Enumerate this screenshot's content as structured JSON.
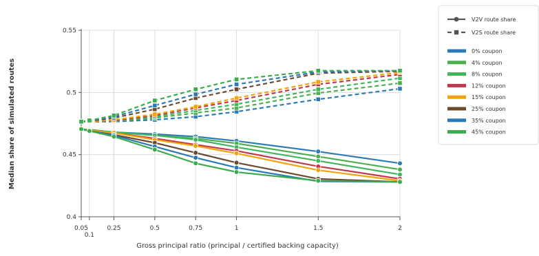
{
  "chart_data": {
    "type": "line",
    "xlabel": "Gross principal ratio (principal / certified backing capacity)",
    "ylabel": "Median share of simulated routes",
    "xlim": [
      0.05,
      2
    ],
    "ylim": [
      0.4,
      0.55
    ],
    "x_ticks_top": [
      "0.05",
      "0.25",
      "0.5",
      "0.75",
      "1",
      "1.5",
      "2"
    ],
    "x_ticks_bottom": [
      "0.1"
    ],
    "y_ticks": [
      "0.55",
      "0.5",
      "0.45",
      "0.4"
    ],
    "grid": true,
    "legend_position": "right",
    "style_legend": [
      {
        "label": "V2V route share",
        "marker": "circle",
        "dash": "solid"
      },
      {
        "label": "V2S route share",
        "marker": "square",
        "dash": "dashed"
      }
    ],
    "color_legend": [
      {
        "label": "0% coupon",
        "color": "#2c7bb6"
      },
      {
        "label": "4% coupon",
        "color": "#4cae4f"
      },
      {
        "label": "8% coupon",
        "color": "#3fb65a"
      },
      {
        "label": "12% coupon",
        "color": "#c0394a"
      },
      {
        "label": "15% coupon",
        "color": "#f0a30a"
      },
      {
        "label": "25% coupon",
        "color": "#6b4a2e"
      },
      {
        "label": "35% coupon",
        "color": "#2a78b8"
      },
      {
        "label": "45% coupon",
        "color": "#3bab4e"
      }
    ],
    "x": [
      0.05,
      0.1,
      0.25,
      0.5,
      0.75,
      1,
      1.5,
      2
    ],
    "series": [
      {
        "name": "V2V route share",
        "coupon": "0% coupon",
        "color": "#2c7bb6",
        "style": "v2v",
        "values": [
          0.4705,
          0.47,
          0.468,
          0.4665,
          0.4645,
          0.461,
          0.4525,
          0.443
        ]
      },
      {
        "name": "V2V route share",
        "coupon": "4% coupon",
        "color": "#4cae4f",
        "style": "v2v",
        "values": [
          0.4705,
          0.47,
          0.468,
          0.4655,
          0.463,
          0.459,
          0.4485,
          0.438
        ]
      },
      {
        "name": "V2V route share",
        "coupon": "8% coupon",
        "color": "#3fb65a",
        "style": "v2v",
        "values": [
          0.4705,
          0.47,
          0.468,
          0.4655,
          0.462,
          0.456,
          0.445,
          0.434
        ]
      },
      {
        "name": "V2V route share",
        "coupon": "12% coupon",
        "color": "#c0394a",
        "style": "v2v",
        "values": [
          0.4705,
          0.4695,
          0.4675,
          0.463,
          0.458,
          0.453,
          0.4405,
          0.4305
        ]
      },
      {
        "name": "V2V route share",
        "coupon": "15% coupon",
        "color": "#f0a30a",
        "style": "v2v",
        "values": [
          0.4705,
          0.4695,
          0.4675,
          0.462,
          0.457,
          0.451,
          0.4375,
          0.429
        ]
      },
      {
        "name": "V2V route share",
        "coupon": "25% coupon",
        "color": "#6b4a2e",
        "style": "v2v",
        "values": [
          0.4705,
          0.469,
          0.466,
          0.4595,
          0.4515,
          0.4435,
          0.4305,
          0.428
        ]
      },
      {
        "name": "V2V route share",
        "coupon": "35% coupon",
        "color": "#2a78b8",
        "style": "v2v",
        "values": [
          0.4705,
          0.469,
          0.4655,
          0.4565,
          0.4475,
          0.4395,
          0.4285,
          0.428
        ]
      },
      {
        "name": "V2V route share",
        "coupon": "45% coupon",
        "color": "#3bab4e",
        "style": "v2v",
        "values": [
          0.4705,
          0.469,
          0.4645,
          0.454,
          0.443,
          0.436,
          0.429,
          0.428
        ]
      },
      {
        "name": "V2S route share",
        "coupon": "0% coupon",
        "color": "#2c7bb6",
        "style": "v2s",
        "values": [
          0.4765,
          0.4765,
          0.4765,
          0.478,
          0.4805,
          0.4845,
          0.4945,
          0.503
        ]
      },
      {
        "name": "V2S route share",
        "coupon": "4% coupon",
        "color": "#4cae4f",
        "style": "v2s",
        "values": [
          0.4765,
          0.4765,
          0.477,
          0.4795,
          0.4835,
          0.4875,
          0.4995,
          0.5075
        ]
      },
      {
        "name": "V2S route share",
        "coupon": "8% coupon",
        "color": "#3fb65a",
        "style": "v2s",
        "values": [
          0.4765,
          0.4765,
          0.4775,
          0.4805,
          0.4855,
          0.4905,
          0.5025,
          0.5115
        ]
      },
      {
        "name": "V2S route share",
        "coupon": "12% coupon",
        "color": "#c0394a",
        "style": "v2s",
        "values": [
          0.4765,
          0.4765,
          0.4775,
          0.4815,
          0.4875,
          0.4935,
          0.5065,
          0.5145
        ]
      },
      {
        "name": "V2S route share",
        "coupon": "15% coupon",
        "color": "#f0a30a",
        "style": "v2s",
        "values": [
          0.4765,
          0.4765,
          0.478,
          0.4825,
          0.4885,
          0.4955,
          0.5085,
          0.516
        ]
      },
      {
        "name": "V2S route share",
        "coupon": "25% coupon",
        "color": "#6b4a2e",
        "style": "v2s",
        "values": [
          0.4765,
          0.477,
          0.4795,
          0.4865,
          0.4955,
          0.5025,
          0.5155,
          0.517
        ]
      },
      {
        "name": "V2S route share",
        "coupon": "35% coupon",
        "color": "#2a78b8",
        "style": "v2s",
        "values": [
          0.4765,
          0.477,
          0.4805,
          0.4895,
          0.4985,
          0.5065,
          0.5165,
          0.5175
        ]
      },
      {
        "name": "V2S route share",
        "coupon": "45% coupon",
        "color": "#3bab4e",
        "style": "v2s",
        "values": [
          0.4765,
          0.4775,
          0.4815,
          0.4935,
          0.5025,
          0.5105,
          0.5175,
          0.5175
        ]
      }
    ]
  }
}
